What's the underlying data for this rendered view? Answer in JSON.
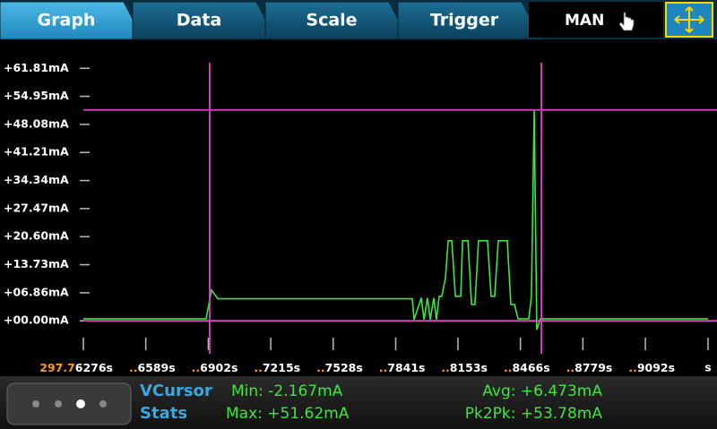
{
  "tabs": [
    "Graph",
    "Data",
    "Scale",
    "Trigger"
  ],
  "mode": "MAN",
  "chart_data": {
    "type": "line",
    "ylim": [
      -5,
      64.5
    ],
    "yticks": [
      {
        "value": 61.81,
        "label": "+61.81mA"
      },
      {
        "value": 54.95,
        "label": "+54.95mA"
      },
      {
        "value": 48.08,
        "label": "+48.08mA"
      },
      {
        "value": 41.21,
        "label": "+41.21mA"
      },
      {
        "value": 34.34,
        "label": "+34.34mA"
      },
      {
        "value": 27.47,
        "label": "+27.47mA"
      },
      {
        "value": 20.6,
        "label": "+20.60mA"
      },
      {
        "value": 13.73,
        "label": "+13.73mA"
      },
      {
        "value": 6.86,
        "label": "+06.86mA"
      },
      {
        "value": 0,
        "label": "+00.00mA"
      }
    ],
    "xlim": [
      297.76276,
      297.79406
    ],
    "xticks": [
      {
        "value": 297.76276,
        "prefix": "297.7",
        "label": "6276s"
      },
      {
        "value": 297.76589,
        "prefix": "..",
        "label": "6589s"
      },
      {
        "value": 297.76902,
        "prefix": "..",
        "label": "6902s"
      },
      {
        "value": 297.77215,
        "prefix": "..",
        "label": "7215s"
      },
      {
        "value": 297.77528,
        "prefix": "..",
        "label": "7528s"
      },
      {
        "value": 297.77841,
        "prefix": "..",
        "label": "7841s"
      },
      {
        "value": 297.78153,
        "prefix": "..",
        "label": "8153s"
      },
      {
        "value": 297.78466,
        "prefix": "..",
        "label": "8466s"
      },
      {
        "value": 297.78779,
        "prefix": "..",
        "label": "8779s"
      },
      {
        "value": 297.79092,
        "prefix": "..",
        "label": "9092s"
      }
    ],
    "xunit": "s",
    "vcursors": [
      297.76909,
      297.78571
    ],
    "hcursors": [
      51.62,
      0
    ],
    "cursor_color": "#e040c8",
    "series": [
      {
        "color": "#3ee63e",
        "x": [
          297.76276,
          297.76891,
          297.76918,
          297.7695,
          297.76981,
          297.77924,
          297.77933,
          297.77969,
          297.77983,
          297.78,
          297.78014,
          297.78032,
          297.78045,
          297.78059,
          297.78072,
          297.7809,
          297.78104,
          297.78122,
          297.7814,
          297.78167,
          297.78176,
          297.78203,
          297.78221,
          297.78238,
          297.78256,
          297.78274,
          297.78301,
          297.78319,
          297.78337,
          297.78355,
          297.78373,
          297.784,
          297.78418,
          297.78436,
          297.78454,
          297.78508,
          297.78521,
          297.78535,
          297.78548,
          297.78566,
          297.79406
        ],
        "values": [
          0.5,
          0.5,
          7.5,
          5.4,
          5.4,
          5.4,
          0.3,
          5.6,
          0.3,
          5.6,
          0.3,
          5.6,
          0.3,
          6.0,
          6.0,
          10.4,
          19.6,
          19.6,
          6.0,
          6.0,
          19.6,
          19.6,
          4.0,
          4.0,
          19.6,
          19.6,
          19.6,
          6.0,
          6.0,
          19.6,
          19.6,
          19.6,
          4.0,
          4.0,
          0.5,
          0.5,
          6.0,
          51.6,
          -2.2,
          0.5,
          0.5
        ]
      }
    ]
  },
  "stats": {
    "title": [
      "VCursor",
      "Stats"
    ],
    "items": [
      "Min: -2.167mA",
      "Max: +51.62mA",
      "Avg: +6.473mA",
      "Pk2Pk: +53.78mA"
    ]
  }
}
